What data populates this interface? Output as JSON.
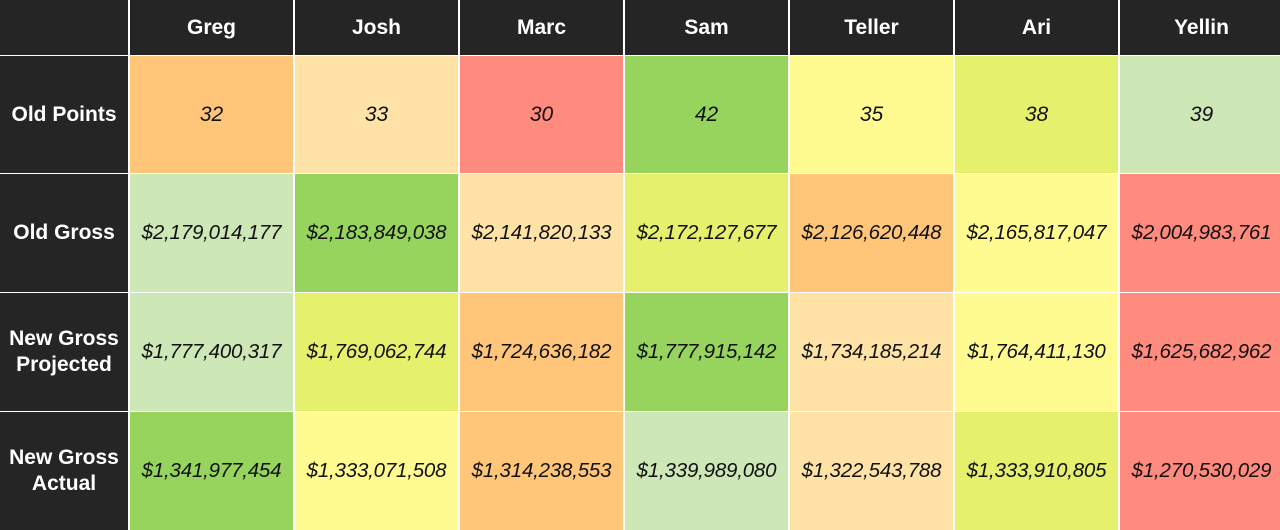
{
  "chart_data": {
    "type": "table",
    "columns": [
      "Greg",
      "Josh",
      "Marc",
      "Sam",
      "Teller",
      "Ari",
      "Yellin"
    ],
    "rows": [
      {
        "label": "Old Points",
        "money": false,
        "values": [
          "32",
          "33",
          "30",
          "42",
          "35",
          "38",
          "39"
        ],
        "colors": [
          "#ffc67a",
          "#ffe3a6",
          "#ff8a7e",
          "#96d45e",
          "#fffb90",
          "#e5f06c",
          "#cde7b7"
        ]
      },
      {
        "label": "Old Gross",
        "money": true,
        "values": [
          "$2,179,014,177",
          "$2,183,849,038",
          "$2,141,820,133",
          "$2,172,127,677",
          "$2,126,620,448",
          "$2,165,817,047",
          "$2,004,983,761"
        ],
        "colors": [
          "#cde7b7",
          "#96d45e",
          "#ffe3a6",
          "#e5f06c",
          "#ffc67a",
          "#fffb90",
          "#ff8a7e"
        ]
      },
      {
        "label": "New Gross\nProjected",
        "money": true,
        "values": [
          "$1,777,400,317",
          "$1,769,062,744",
          "$1,724,636,182",
          "$1,777,915,142",
          "$1,734,185,214",
          "$1,764,411,130",
          "$1,625,682,962"
        ],
        "colors": [
          "#cde7b7",
          "#e5f06c",
          "#ffc67a",
          "#96d45e",
          "#ffe3a6",
          "#fffb90",
          "#ff8a7e"
        ]
      },
      {
        "label": "New Gross\nActual",
        "money": true,
        "values": [
          "$1,341,977,454",
          "$1,333,071,508",
          "$1,314,238,553",
          "$1,339,989,080",
          "$1,322,543,788",
          "$1,333,910,805",
          "$1,270,530,029"
        ],
        "colors": [
          "#96d45e",
          "#fffb90",
          "#ffc67a",
          "#cde7b7",
          "#ffe3a6",
          "#e5f06c",
          "#ff8a7e"
        ]
      }
    ],
    "header_bg": "#252525",
    "header_fg": "#ffffff"
  }
}
